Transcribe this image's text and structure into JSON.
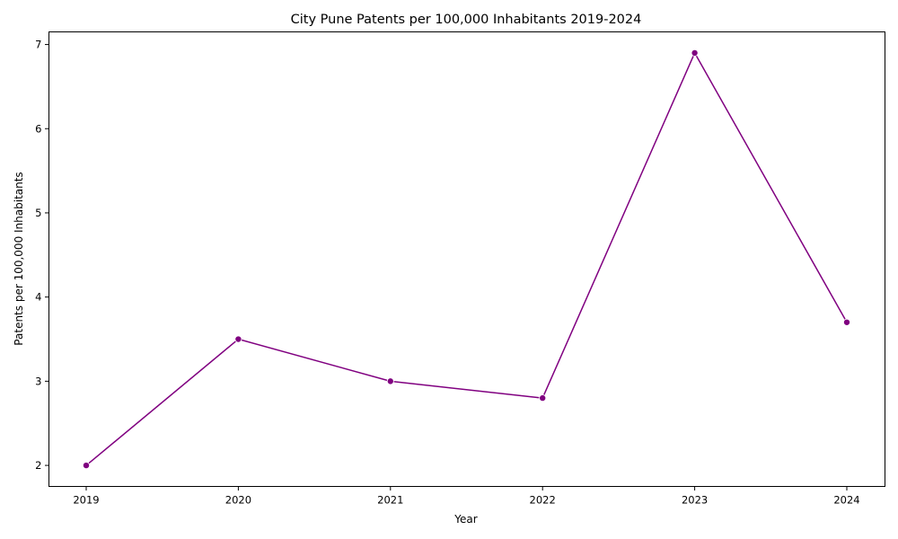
{
  "chart_data": {
    "type": "line",
    "title": "City Pune Patents per 100,000 Inhabitants 2019-2024",
    "xlabel": "Year",
    "ylabel": "Patents per 100,000 Inhabitants",
    "x": [
      "2019",
      "2020",
      "2021",
      "2022",
      "2023",
      "2024"
    ],
    "series": [
      {
        "values": [
          2.0,
          3.5,
          3.0,
          2.8,
          6.9,
          3.7
        ],
        "color": "#800080",
        "marker": "circle"
      }
    ],
    "yticks": [
      "2",
      "3",
      "4",
      "5",
      "6",
      "7"
    ],
    "ylim": [
      1.75,
      7.15
    ],
    "grid": false,
    "legend": "none"
  }
}
